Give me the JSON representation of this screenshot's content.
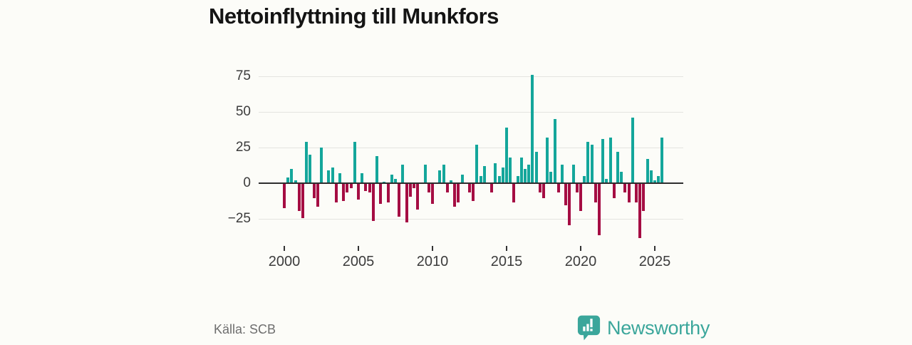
{
  "title": "Nettoinflyttning till Munkfors",
  "footer": {
    "source": "Källa: SCB",
    "brand": "Newsworthy"
  },
  "colors": {
    "background": "#fcfcf8",
    "positive": "#14a69b",
    "negative": "#a50d43",
    "grid": "#e4e4e0",
    "zero_line": "#2e2e2e",
    "title_text": "#141414",
    "axis_text": "#3c3c3c",
    "tick_mark": "#333333",
    "source_text": "#6e6e6e",
    "brand_teal": "#3ba69b"
  },
  "chart_data": {
    "type": "bar",
    "title": "Nettoinflyttning till Munkfors",
    "xlabel": "",
    "ylabel": "",
    "frequency": "quarterly",
    "start_year": 2000,
    "start_quarter": 1,
    "grid": true,
    "legend": false,
    "ylim": [
      -41.5,
      83.5
    ],
    "yticks": [
      75,
      50,
      25,
      0,
      -25
    ],
    "ytick_labels": [
      "75",
      "50",
      "25",
      "0",
      "−25"
    ],
    "xticks": [
      2000,
      2005,
      2010,
      2015,
      2020,
      2025
    ],
    "values": [
      -17,
      4,
      10,
      2,
      -19,
      -24,
      29,
      20,
      -10,
      -16,
      25,
      0,
      9,
      11,
      -13,
      7,
      -12,
      -6,
      -3,
      29,
      -11,
      7,
      -5,
      -6,
      -26,
      19,
      -14,
      1,
      -13,
      6,
      3,
      -23,
      13,
      -27,
      -9,
      -3,
      -18,
      0,
      13,
      -6,
      -14,
      0,
      9,
      13,
      -6,
      2,
      -16,
      -13,
      6,
      0,
      -6,
      -12,
      27,
      5,
      12,
      0,
      -6,
      14,
      5,
      11,
      39,
      18,
      -13,
      5,
      18,
      10,
      13,
      76,
      22,
      -6,
      -10,
      32,
      8,
      45,
      -6,
      13,
      -15,
      -29,
      13,
      -6,
      -19,
      5,
      29,
      27,
      -13,
      -36,
      31,
      3,
      32,
      -10,
      22,
      8,
      -6,
      -13,
      46,
      -13,
      -38,
      -19,
      17,
      9,
      2,
      5,
      32
    ]
  }
}
